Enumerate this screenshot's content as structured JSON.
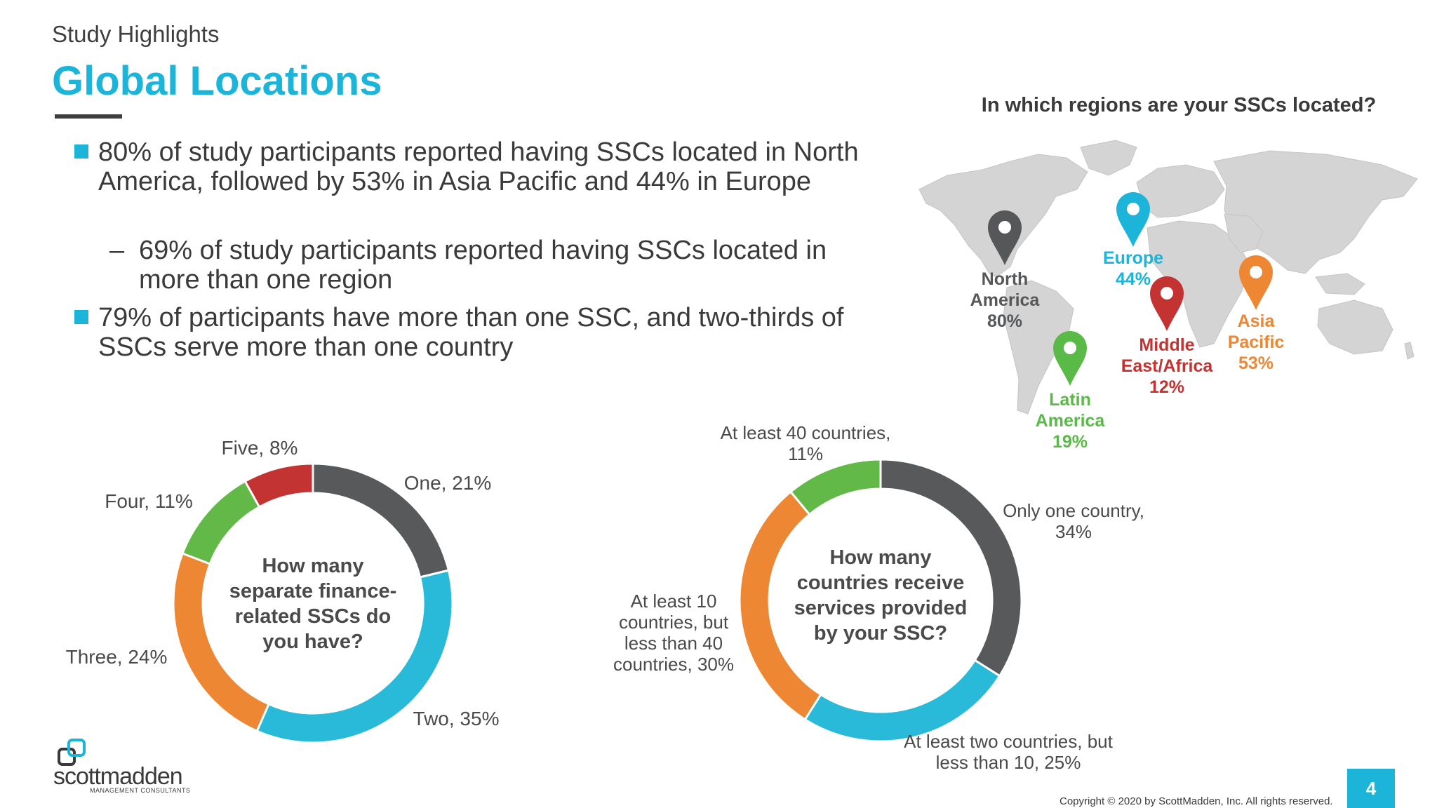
{
  "header": {
    "eyebrow": "Study Highlights",
    "title": "Global Locations"
  },
  "bullets": [
    {
      "text": "80% of study participants reported having SSCs located in North America, followed by 53% in Asia Pacific and 44% in Europe"
    },
    {
      "sub": true,
      "dash": "–",
      "text": "69% of study participants reported having SSCs located in more than one region"
    },
    {
      "text": "79% of participants have more than one SSC, and two-thirds of SSCs serve more than one country"
    }
  ],
  "map": {
    "question": "In which regions are your SSCs located?",
    "pins": [
      {
        "id": "north-america",
        "lines": [
          "North",
          "America",
          "80%"
        ],
        "color": "#555759"
      },
      {
        "id": "europe",
        "lines": [
          "Europe",
          "44%"
        ],
        "color": "#1cb4d8"
      },
      {
        "id": "middle-east-africa",
        "lines": [
          "Middle",
          "East/Africa",
          "12%"
        ],
        "color": "#c23332"
      },
      {
        "id": "asia-pacific",
        "lines": [
          "Asia",
          "Pacific",
          "53%"
        ],
        "color": "#ee8733"
      },
      {
        "id": "latin-america",
        "lines": [
          "Latin",
          "America",
          "19%"
        ],
        "color": "#5aba47"
      }
    ]
  },
  "chart_data": [
    {
      "type": "pie",
      "donut": true,
      "center_label": [
        "How many",
        "separate finance-",
        "related SSCs do",
        "you have?"
      ],
      "slices": [
        {
          "label": [
            "One, 21%"
          ],
          "value": 21,
          "color": "#58595b"
        },
        {
          "label": [
            "Two, 35%"
          ],
          "value": 35,
          "color": "#29b9d9"
        },
        {
          "label": [
            "Three, 24%"
          ],
          "value": 24,
          "color": "#ee8733"
        },
        {
          "label": [
            "Four, 11%"
          ],
          "value": 11,
          "color": "#62b947"
        },
        {
          "label": [
            "Five, 8%"
          ],
          "value": 8,
          "color": "#c23332"
        }
      ]
    },
    {
      "type": "pie",
      "donut": true,
      "center_label": [
        "How many",
        "countries receive",
        "services provided",
        "by your SSC?"
      ],
      "slices": [
        {
          "label": [
            "Only one country,",
            "34%"
          ],
          "value": 34,
          "color": "#58595b"
        },
        {
          "label": [
            "At least two countries, but",
            "less than 10, 25%"
          ],
          "value": 25,
          "color": "#29b9d9"
        },
        {
          "label": [
            "At least 10",
            "countries, but",
            "less than 40",
            "countries, 30%"
          ],
          "value": 30,
          "color": "#ee8733"
        },
        {
          "label": [
            "At least 40 countries,",
            "11%"
          ],
          "value": 11,
          "color": "#62b947"
        }
      ]
    }
  ],
  "footer": {
    "logo_name": "scottmadden",
    "logo_sub": "MANAGEMENT CONSULTANTS",
    "copyright": "Copyright © 2020 by ScottMadden, Inc. All rights reserved.",
    "page_number": "4"
  }
}
